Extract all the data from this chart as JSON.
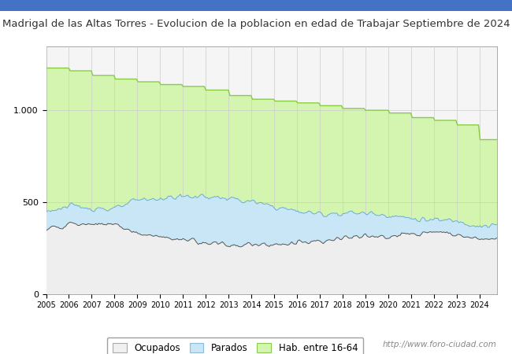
{
  "title": "Madrigal de las Altas Torres - Evolucion de la poblacion en edad de Trabajar Septiembre de 2024",
  "title_color": "#333333",
  "title_fontsize": 9.5,
  "ylabel": "",
  "xlabel": "",
  "ylim": [
    0,
    1350
  ],
  "yticks": [
    0,
    500,
    1000
  ],
  "ytick_labels": [
    "0",
    "500",
    "1.000"
  ],
  "bg_color": "#ffffff",
  "plot_bg": "#f5f5f5",
  "watermark": "http://www.foro-ciudad.com",
  "legend_labels": [
    "Ocupados",
    "Parados",
    "Hab. entre 16-64"
  ],
  "legend_colors_fill": [
    "#f0f0f0",
    "#c8e6f5",
    "#d4f5b0"
  ],
  "legend_colors_edge": [
    "#aaaaaa",
    "#88bbdd",
    "#88cc55"
  ],
  "years": [
    2005,
    2006,
    2007,
    2008,
    2009,
    2010,
    2011,
    2012,
    2013,
    2014,
    2015,
    2016,
    2017,
    2018,
    2019,
    2020,
    2021,
    2022,
    2023,
    2024
  ],
  "hab_data": [
    1230,
    1215,
    1190,
    1170,
    1155,
    1140,
    1130,
    1110,
    1080,
    1060,
    1050,
    1040,
    1025,
    1010,
    1000,
    985,
    960,
    945,
    920,
    840
  ],
  "parados_upper_data": [
    450,
    475,
    470,
    460,
    510,
    520,
    530,
    530,
    520,
    500,
    475,
    450,
    435,
    440,
    440,
    430,
    410,
    400,
    400,
    370
  ],
  "ocupados_upper_data": [
    350,
    375,
    380,
    380,
    330,
    305,
    295,
    275,
    265,
    265,
    270,
    280,
    290,
    305,
    315,
    305,
    325,
    340,
    320,
    295
  ],
  "parados_line_seed": 123,
  "ocupados_line_seed": 456,
  "noise_scale_parados": 12,
  "noise_scale_ocupados": 10,
  "num_points": 300
}
